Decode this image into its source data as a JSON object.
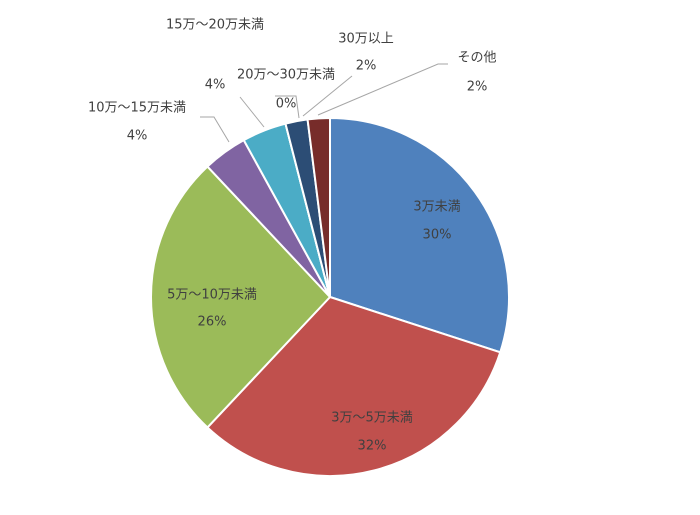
{
  "chart_data": {
    "type": "pie",
    "categories": [
      "3万未満",
      "3万～5万未満",
      "5万～10万未満",
      "10万～15万未満",
      "15万～20万未満",
      "20万～30万未満",
      "30万以上",
      "その他"
    ],
    "values": [
      30,
      32,
      26,
      4,
      4,
      0,
      2,
      2
    ],
    "value_labels": [
      "30%",
      "32%",
      "26%",
      "4%",
      "4%",
      "0%",
      "2%",
      "2%"
    ],
    "colors": [
      "#4f81bd",
      "#c0504d",
      "#9bbb59",
      "#8064a2",
      "#4bacc6",
      "#1f497d",
      "#2c4d75",
      "#772c2a"
    ]
  }
}
